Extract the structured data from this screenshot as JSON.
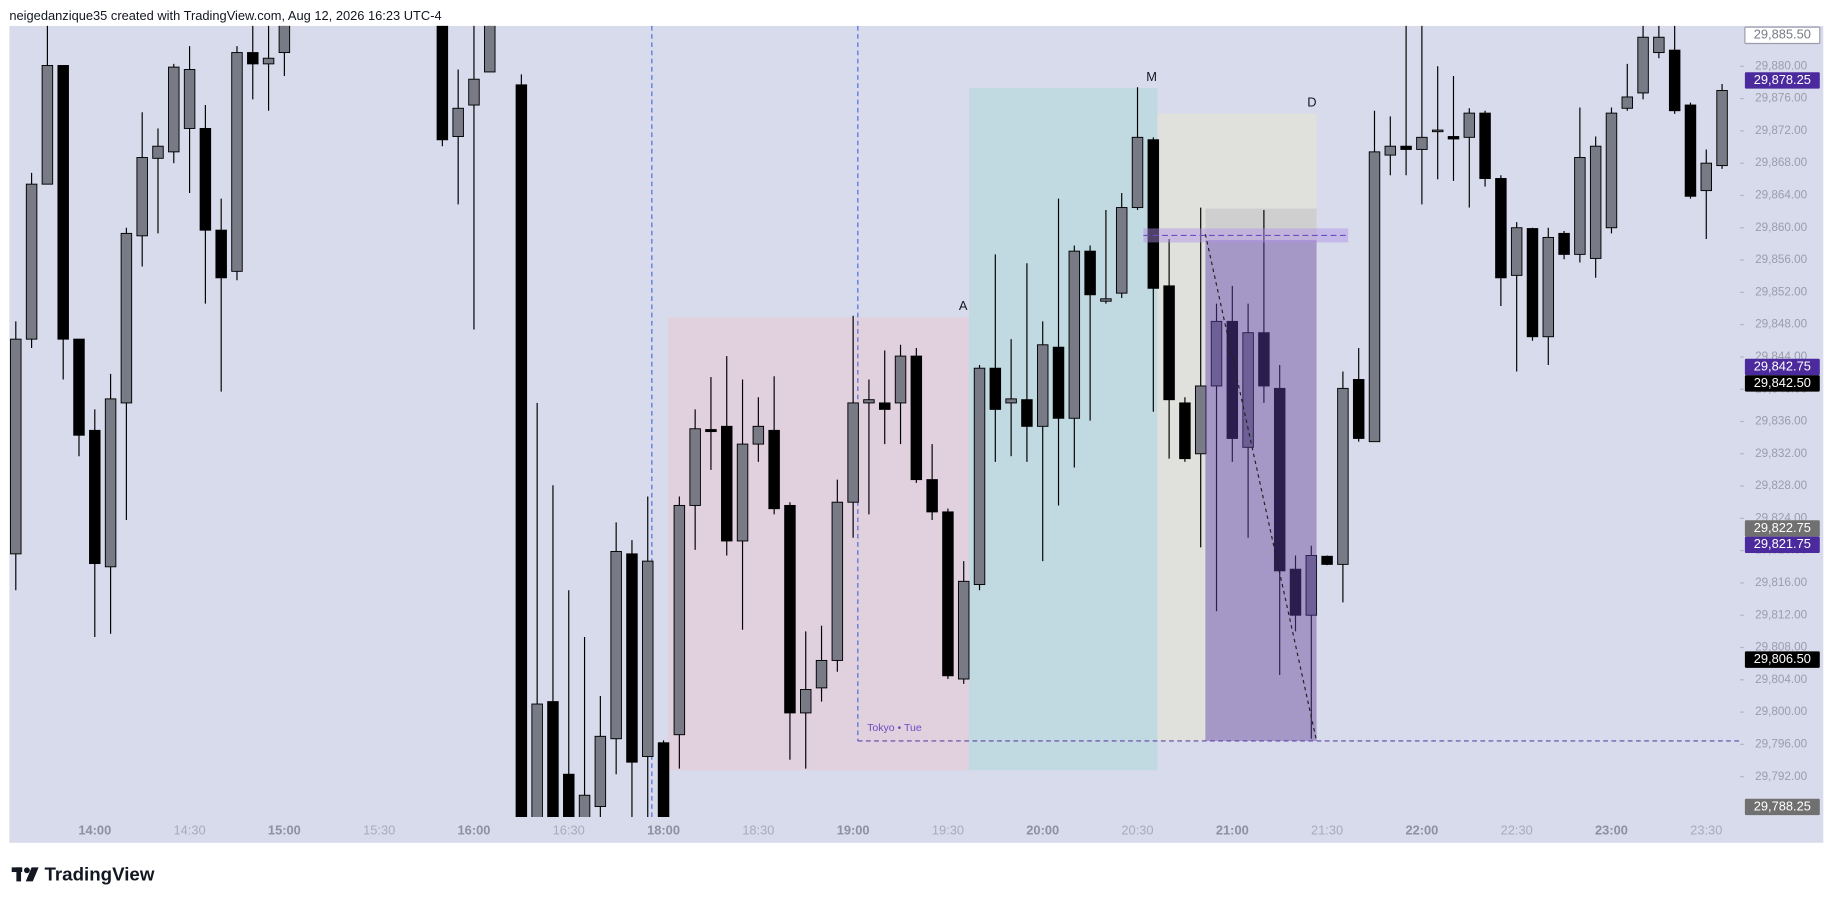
{
  "header": "neigedanzique35 created with TradingView.com, Aug 12, 2026 16:23 UTC-4",
  "brand": "TradingView",
  "drawing_labels": [
    "A",
    "M",
    "D",
    "Tokyo • Tue"
  ],
  "chart_data": {
    "type": "candlestick",
    "up_color": "#787b86",
    "down_color": "#000000",
    "categories": [
      null,
      null,
      null,
      null,
      null,
      "14:00",
      null,
      null,
      null,
      null,
      null,
      "14:30",
      null,
      null,
      null,
      null,
      null,
      "15:00",
      null,
      null,
      null,
      null,
      null,
      "15:30",
      null,
      null,
      null,
      null,
      null,
      "16:00",
      null,
      null,
      null,
      null,
      null,
      "16:30",
      null,
      null,
      null,
      null,
      null,
      "18:00",
      null,
      null,
      null,
      null,
      null,
      "18:30",
      null,
      null,
      null,
      null,
      null,
      "19:00",
      null,
      null,
      null,
      null,
      null,
      "19:30",
      null,
      null,
      null,
      null,
      null,
      "20:00",
      null,
      null,
      null,
      null,
      null,
      "20:30",
      null,
      null,
      null,
      null,
      null,
      "21:00",
      null,
      null,
      null,
      null,
      null,
      "21:30",
      null,
      null,
      null,
      null,
      null,
      "22:00",
      null,
      null,
      null,
      null,
      null,
      "22:30",
      null,
      null,
      null,
      null,
      null,
      "23:00",
      null,
      null,
      null,
      null,
      null,
      "23:30",
      null
    ],
    "open": [
      29819.6,
      29846.2,
      29865.4,
      29880.1,
      29846.2,
      29834.9,
      29818.0,
      29838.3,
      29859.0,
      29868.6,
      29869.4,
      29872.3,
      29872.3,
      29859.7,
      29854.6,
      29881.7,
      29880.3,
      29881.7,
      null,
      null,
      null,
      null,
      null,
      null,
      null,
      null,
      null,
      29888,
      29871.3,
      29875.2,
      29879.3,
      null,
      29877.7,
      29784,
      29801.3,
      29792.3,
      29785,
      29788.3,
      29796.7,
      29819.6,
      29794.5,
      29796.2,
      29797.2,
      29825.6,
      29835.0,
      29835.4,
      29821.2,
      29833.2,
      29834.9,
      29825.6,
      29799.9,
      29803.0,
      29806.4,
      29826.0,
      29838.3,
      29838.3,
      29838.3,
      29844.1,
      29828.8,
      29824.8,
      29804.1,
      29815.8,
      29842.6,
      29838.3,
      29838.7,
      29835.4,
      29845.2,
      29836.4,
      29857.1,
      29850.9,
      29851.9,
      29862.5,
      29870.9,
      29852.8,
      29838.3,
      29832.0,
      29840.4,
      29848.4,
      29832.8,
      29847.0,
      29840.1,
      29817.7,
      29812.0,
      29819.3,
      29818.3,
      29841.2,
      29833.5,
      29869.0,
      29870.1,
      29869.7,
      29871.9,
      29871.3,
      29871.2,
      29874.2,
      29866.1,
      29854.1,
      29859.9,
      29846.5,
      29859.3,
      29856.7,
      29856.2,
      29860.0,
      29874.8,
      29876.7,
      29881.7,
      29882.0,
      29875.2,
      29864.6,
      29867.7
    ],
    "high": [
      29848.4,
      29866.8,
      29886,
      29880.1,
      29846.2,
      29837.5,
      29841.9,
      29860.0,
      29874.3,
      29872.3,
      29880.3,
      29882.5,
      29875.2,
      29863.6,
      29882.5,
      29888,
      29888,
      29888,
      null,
      null,
      null,
      null,
      null,
      null,
      null,
      null,
      null,
      29892,
      29879.6,
      29890,
      29892,
      null,
      29879,
      29838.3,
      29828.1,
      29815.1,
      29809.3,
      29802.0,
      29823.5,
      29821.3,
      29826.7,
      29796.5,
      29826.7,
      29837.5,
      29841.5,
      29844.1,
      29841.2,
      29839.0,
      29841.6,
      29826.0,
      29810.0,
      29810.7,
      29828.8,
      29849.1,
      29841.2,
      29844.8,
      29845.5,
      29845.1,
      29833.2,
      29825.2,
      29818.7,
      29843.0,
      29856.7,
      29846.2,
      29855.6,
      29848.4,
      29863.6,
      29857.8,
      29857.8,
      29862.2,
      29864.3,
      29877.4,
      29871.2,
      29858.6,
      29839.0,
      29862.5,
      29850.6,
      29852.8,
      29850.6,
      29862.2,
      29843.0,
      29819.4,
      29820.6,
      29819.4,
      29842.2,
      29845.1,
      29874.5,
      29873.8,
      29888,
      29888,
      29880.0,
      29878.8,
      29874.8,
      29874.5,
      29866.5,
      29860.7,
      29860.0,
      29860.0,
      29859.6,
      29874.9,
      29871.3,
      29874.9,
      29880.3,
      29888,
      29888,
      29888,
      29875.5,
      29869.7,
      29877.8
    ],
    "low": [
      29815.1,
      29845.1,
      29865.4,
      29841.2,
      29831.7,
      29809.3,
      29809.7,
      29823.8,
      29855.2,
      29859.3,
      29868.0,
      29864.3,
      29850.6,
      29839.7,
      29853.5,
      29875.9,
      29874.5,
      29878.8,
      null,
      null,
      null,
      null,
      null,
      null,
      null,
      null,
      null,
      29870.1,
      29862.9,
      29847.4,
      29879.3,
      null,
      29782,
      29781,
      29781,
      29781,
      29783,
      29787,
      29792.3,
      29785,
      29786,
      29782,
      29793.0,
      29820.1,
      29830.0,
      29819.4,
      29810.2,
      29831.0,
      29824.5,
      29794.1,
      29793.0,
      29801.3,
      29805.0,
      29821.6,
      29824.5,
      29833.2,
      29833.2,
      29828.4,
      29823.8,
      29804.1,
      29803.5,
      29815.1,
      29831.0,
      29831.7,
      29831.0,
      29818.7,
      29825.6,
      29830.3,
      29836.1,
      29850.6,
      29851.3,
      29862.2,
      29837.2,
      29831.4,
      29831.0,
      29820.4,
      29812.5,
      29831.0,
      29821.6,
      29838.3,
      29804.6,
      29810.0,
      29796.7,
      29818.2,
      29813.6,
      29833.5,
      29833.5,
      29866.5,
      29866.5,
      29862.9,
      29866.0,
      29865.8,
      29862.5,
      29865.1,
      29850.3,
      29842.2,
      29846.0,
      29843.0,
      29856.1,
      29855.7,
      29853.8,
      29859.3,
      29874.5,
      29875.9,
      29881.0,
      29874.1,
      29863.6,
      29858.6,
      29867.3
    ],
    "close": [
      29846.2,
      29865.4,
      29880.1,
      29846.2,
      29834.3,
      29818.4,
      29838.8,
      29859.3,
      29868.7,
      29870.1,
      29879.9,
      29879.6,
      29859.7,
      29853.8,
      29881.7,
      29880.3,
      29881.0,
      29886,
      null,
      null,
      null,
      null,
      null,
      null,
      null,
      null,
      null,
      29870.9,
      29874.8,
      29878.4,
      29887,
      null,
      29785,
      29801.0,
      29784,
      29784,
      29789.7,
      29797.0,
      29819.9,
      29793.8,
      29818.7,
      29785,
      29825.6,
      29835.1,
      29834.75,
      29821.2,
      29833.2,
      29835.4,
      29825.2,
      29799.9,
      29802.8,
      29806.4,
      29826.0,
      29838.3,
      29838.7,
      29837.5,
      29844.1,
      29828.8,
      29824.8,
      29804.5,
      29816.2,
      29842.6,
      29837.5,
      29838.8,
      29835.4,
      29845.5,
      29836.4,
      29857.1,
      29851.7,
      29851.2,
      29862.5,
      29871.2,
      29852.5,
      29838.7,
      29831.4,
      29840.4,
      29848.4,
      29833.9,
      29847.0,
      29840.4,
      29817.5,
      29812.0,
      29819.4,
      29818.3,
      29840.1,
      29833.9,
      29869.4,
      29870.1,
      29869.7,
      29871.2,
      29872.1,
      29871.0,
      29874.2,
      29866.1,
      29853.8,
      29860.0,
      29846.5,
      29858.8,
      29856.7,
      29868.7,
      29870.1,
      29874.2,
      29876.2,
      29883.6,
      29883.6,
      29874.5,
      29863.9,
      29868.0,
      29877.0
    ],
    "ylim": [
      29787,
      29885
    ],
    "yticks": [
      {
        "value": 29792,
        "label": "29,792.00"
      },
      {
        "value": 29796,
        "label": "29,796.00"
      },
      {
        "value": 29800,
        "label": "29,800.00"
      },
      {
        "value": 29804,
        "label": "29,804.00"
      },
      {
        "value": 29808,
        "label": "29,808.00"
      },
      {
        "value": 29812,
        "label": "29,812.00"
      },
      {
        "value": 29816,
        "label": "29,816.00"
      },
      {
        "value": 29820,
        "label": "29,820.00"
      },
      {
        "value": 29824,
        "label": "29,824.00"
      },
      {
        "value": 29828,
        "label": "29,828.00"
      },
      {
        "value": 29832,
        "label": "29,832.00"
      },
      {
        "value": 29836,
        "label": "29,836.00"
      },
      {
        "value": 29840,
        "label": "29,840.00"
      },
      {
        "value": 29844,
        "label": "29,844.00"
      },
      {
        "value": 29848,
        "label": "29,848.00"
      },
      {
        "value": 29852,
        "label": "29,852.00"
      },
      {
        "value": 29856,
        "label": "29,856.00"
      },
      {
        "value": 29860,
        "label": "29,860.00"
      },
      {
        "value": 29864,
        "label": "29,864.00"
      },
      {
        "value": 29868,
        "label": "29,868.00"
      },
      {
        "value": 29872,
        "label": "29,872.00"
      },
      {
        "value": 29876,
        "label": "29,876.00"
      },
      {
        "value": 29880,
        "label": "29,880.00"
      }
    ],
    "price_labels": [
      {
        "value": 29885.5,
        "label": "29,885.50",
        "color": "#ffffff"
      },
      {
        "value": 29878.25,
        "label": "29,878.25",
        "color": "#4b2a9e"
      },
      {
        "value": 29842.75,
        "label": "29,842.75",
        "color": "#4b2a9e"
      },
      {
        "value": 29842.5,
        "label": "29,842.50",
        "color": "#000000"
      },
      {
        "value": 29822.75,
        "label": "29,822.75",
        "color": "#707070"
      },
      {
        "value": 29821.75,
        "label": "29,821.75",
        "color": "#4b2a9e"
      },
      {
        "value": 29806.5,
        "label": "29,806.50",
        "color": "#000000"
      },
      {
        "value": 29788.25,
        "label": "29,788.25",
        "color": "#707070"
      }
    ]
  }
}
